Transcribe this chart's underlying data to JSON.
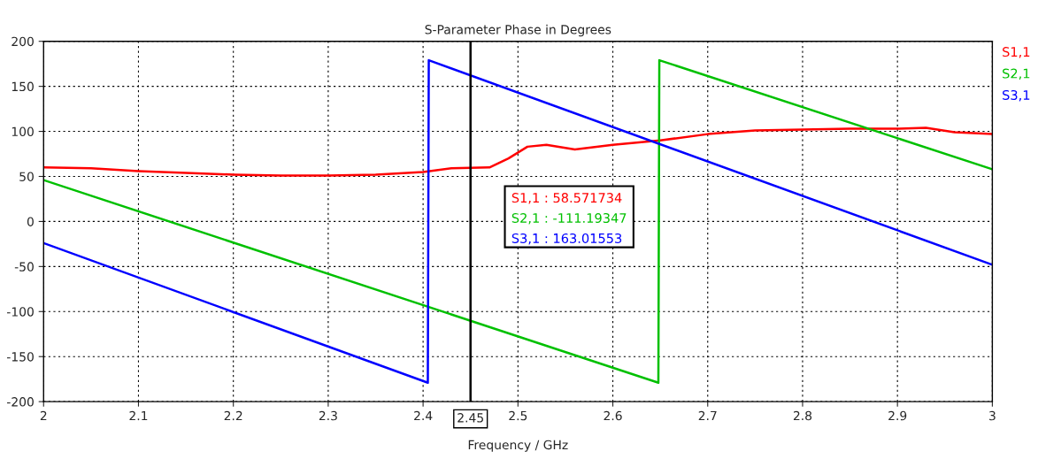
{
  "chart_data": {
    "type": "line",
    "title": "S-Parameter Phase in Degrees",
    "xlabel": "Frequency / GHz",
    "xlim": [
      2,
      3
    ],
    "xticks": [
      2,
      2.1,
      2.2,
      2.3,
      2.4,
      2.5,
      2.6,
      2.7,
      2.8,
      2.9,
      3
    ],
    "ylim": [
      -200,
      200
    ],
    "yticks": [
      -200,
      -150,
      -100,
      -50,
      0,
      50,
      100,
      150,
      200
    ],
    "grid": true,
    "legend": "right",
    "line_style": "solid",
    "marker": "none",
    "series": [
      {
        "name": "S1,1",
        "color": "#ff0000",
        "x": [
          2.0,
          2.05,
          2.1,
          2.15,
          2.2,
          2.25,
          2.3,
          2.35,
          2.4,
          2.43,
          2.47,
          2.49,
          2.51,
          2.53,
          2.56,
          2.6,
          2.65,
          2.7,
          2.75,
          2.8,
          2.85,
          2.9,
          2.93,
          2.96,
          3.0
        ],
        "values": [
          60,
          59,
          56,
          54,
          52,
          51,
          51,
          52,
          55,
          59,
          60,
          70,
          83,
          85,
          80,
          85,
          90,
          97,
          101,
          102,
          103,
          103,
          104,
          99,
          97
        ]
      },
      {
        "name": "S2,1",
        "color": "#00c000",
        "x": [
          2.0,
          2.648,
          2.649,
          3.0
        ],
        "values": [
          46,
          -179,
          179,
          58
        ]
      },
      {
        "name": "S3,1",
        "color": "#0000ff",
        "x": [
          2.0,
          2.405,
          2.406,
          3.0
        ],
        "values": [
          -24,
          -179,
          179,
          -48
        ]
      }
    ],
    "ref_lines": [
      {
        "axis": "x",
        "value": 2.45,
        "label": "2.45",
        "color": "#000000"
      }
    ],
    "annotations": [
      "S1,1 : 58.571734",
      "S2,1 : -111.19347",
      "S3,1 : 163.01553"
    ]
  }
}
